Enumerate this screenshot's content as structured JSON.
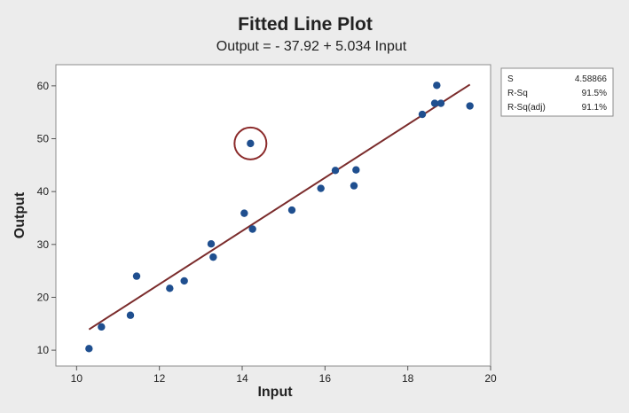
{
  "chart_data": {
    "type": "scatter",
    "title": "Fitted Line Plot",
    "subtitle": "Output = - 37.92 + 5.034 Input",
    "xlabel": "Input",
    "ylabel": "Output",
    "xlim": [
      9.5,
      20
    ],
    "ylim": [
      7,
      64
    ],
    "xticks": [
      10,
      12,
      14,
      16,
      18,
      20
    ],
    "yticks": [
      10,
      20,
      30,
      40,
      50,
      60
    ],
    "grid": false,
    "fit": {
      "intercept": -37.92,
      "slope": 5.034,
      "x_range": [
        10.3,
        19.5
      ],
      "color": "#7b2c2c"
    },
    "highlight": {
      "x": 14.2,
      "y": 49.1,
      "color": "#8b2a2a"
    },
    "point_color": "#1f4f8f",
    "points": [
      {
        "x": 10.3,
        "y": 10.3
      },
      {
        "x": 10.6,
        "y": 14.4
      },
      {
        "x": 11.3,
        "y": 16.6
      },
      {
        "x": 11.45,
        "y": 24.0
      },
      {
        "x": 12.25,
        "y": 21.7
      },
      {
        "x": 12.6,
        "y": 23.1
      },
      {
        "x": 13.25,
        "y": 30.1
      },
      {
        "x": 13.3,
        "y": 27.6
      },
      {
        "x": 14.05,
        "y": 35.9
      },
      {
        "x": 14.2,
        "y": 49.1
      },
      {
        "x": 14.25,
        "y": 32.9
      },
      {
        "x": 15.2,
        "y": 36.5
      },
      {
        "x": 15.9,
        "y": 40.6
      },
      {
        "x": 16.25,
        "y": 44.0
      },
      {
        "x": 16.7,
        "y": 41.1
      },
      {
        "x": 16.75,
        "y": 44.1
      },
      {
        "x": 18.35,
        "y": 54.6
      },
      {
        "x": 18.65,
        "y": 56.7
      },
      {
        "x": 18.7,
        "y": 60.1
      },
      {
        "x": 18.8,
        "y": 56.7
      },
      {
        "x": 19.5,
        "y": 56.2
      }
    ]
  },
  "stats": [
    {
      "label": "S",
      "value": "4.58866"
    },
    {
      "label": "R-Sq",
      "value": "91.5%"
    },
    {
      "label": "R-Sq(adj)",
      "value": "91.1%"
    }
  ]
}
